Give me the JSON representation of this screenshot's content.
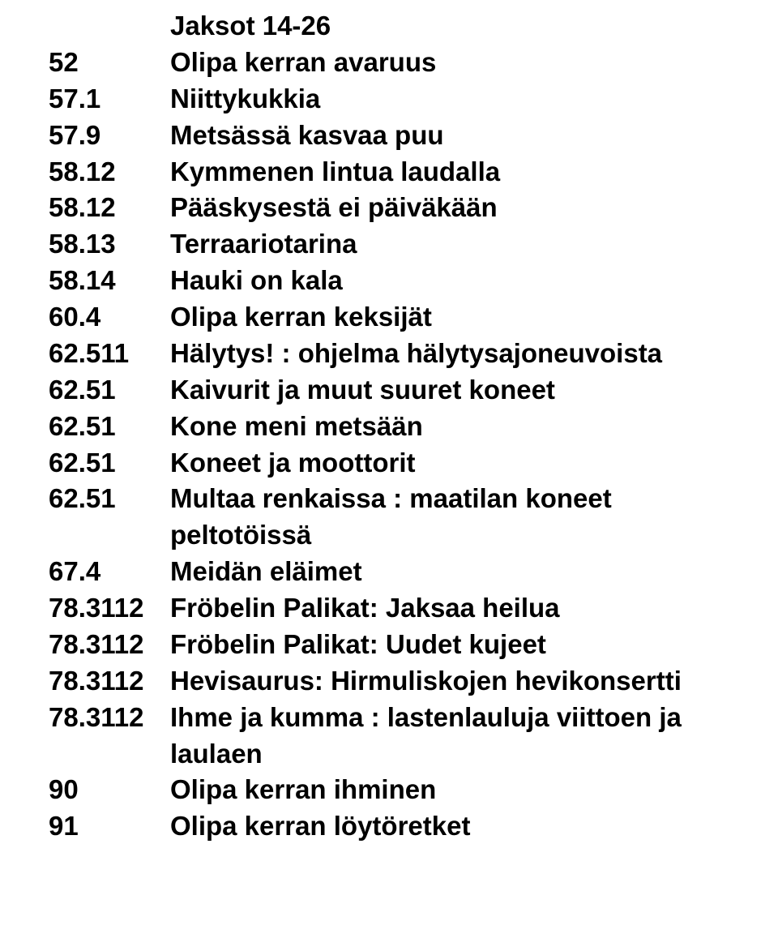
{
  "rows": [
    {
      "num": "",
      "text": "Jaksot 14-26"
    },
    {
      "num": "52",
      "text": "Olipa kerran avaruus"
    },
    {
      "num": "57.1",
      "text": "Niittykukkia"
    },
    {
      "num": "57.9",
      "text": "Metsässä kasvaa puu"
    },
    {
      "num": "58.12",
      "text": "Kymmenen lintua laudalla"
    },
    {
      "num": "58.12",
      "text": "Pääskysestä ei päiväkään"
    },
    {
      "num": "58.13",
      "text": "Terraariotarina"
    },
    {
      "num": "58.14",
      "text": "Hauki on kala"
    },
    {
      "num": "60.4",
      "text": "Olipa kerran keksijät"
    },
    {
      "num": "62.511",
      "text": "Hälytys! : ohjelma hälytysajoneuvoista"
    },
    {
      "num": "62.51",
      "text": "Kaivurit ja muut suuret koneet"
    },
    {
      "num": "62.51",
      "text": "Kone meni metsään"
    },
    {
      "num": "62.51",
      "text": "Koneet ja moottorit"
    },
    {
      "num": "62.51",
      "text": "Multaa renkaissa : maatilan koneet peltotöissä"
    },
    {
      "num": "67.4",
      "text": "Meidän eläimet"
    },
    {
      "num": "78.3112",
      "text": "Fröbelin Palikat: Jaksaa heilua"
    },
    {
      "num": "78.3112",
      "text": "Fröbelin Palikat: Uudet kujeet"
    },
    {
      "num": "78.3112",
      "text": "Hevisaurus: Hirmuliskojen hevikonsertti"
    },
    {
      "num": "78.3112",
      "text": "Ihme ja kumma : lastenlauluja viittoen ja laulaen"
    },
    {
      "num": "90",
      "text": "Olipa kerran ihminen"
    },
    {
      "num": "91",
      "text": "Olipa kerran löytöretket"
    }
  ]
}
